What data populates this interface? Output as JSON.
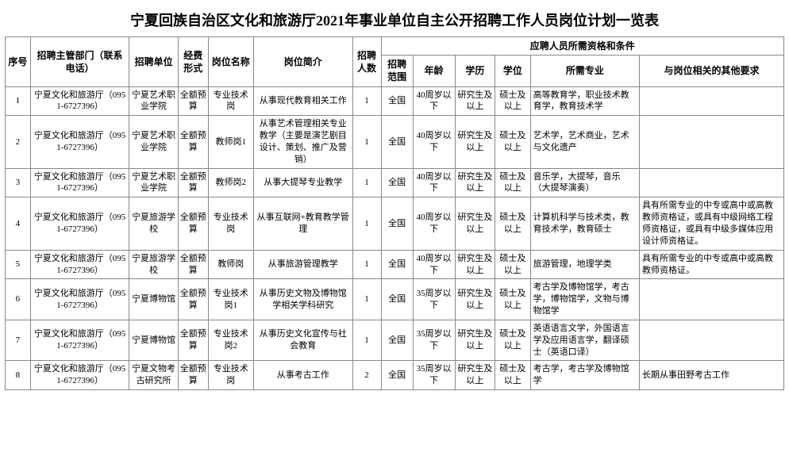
{
  "title": "宁夏回族自治区文化和旅游厅2021年事业单位自主公开招聘工作人员岗位计划一览表",
  "title_fontsize": 18,
  "header_fontsize": 12,
  "body_fontsize": 11,
  "columns": {
    "seq": "序号",
    "dept": "招聘主管部门（联系电话）",
    "unit": "招聘单位",
    "fund": "经费形式",
    "postname": "岗位名称",
    "postdesc": "岗位简介",
    "count": "招聘人数",
    "quals_group": "应聘人员所需资格和条件",
    "scope": "招聘范围",
    "age": "年龄",
    "edu": "学历",
    "degree": "学位",
    "major": "所需专业",
    "other": "与岗位相关的其他要求"
  },
  "col_widths": {
    "seq": 30,
    "dept": 118,
    "unit": 58,
    "fund": 36,
    "postname": 54,
    "postdesc": 118,
    "count": 34,
    "scope": 38,
    "age": 50,
    "edu": 48,
    "degree": 42,
    "major": 130,
    "other": 172
  },
  "rows": [
    {
      "seq": "1",
      "dept": "宁夏文化和旅游厅（0951-6727396）",
      "unit": "宁夏艺术职业学院",
      "fund": "全额预算",
      "postname": "专业技术岗",
      "postdesc": "从事现代教育相关工作",
      "count": "1",
      "scope": "全国",
      "age": "40周岁以下",
      "edu": "研究生及以上",
      "degree": "硕士及以上",
      "major": "高等教育学，职业技术教育学，教育技术学",
      "other": ""
    },
    {
      "seq": "2",
      "dept": "宁夏文化和旅游厅（0951-6727396）",
      "unit": "宁夏艺术职业学院",
      "fund": "全额预算",
      "postname": "教师岗1",
      "postdesc": "从事艺术管理相关专业教学（主要是演艺剧目设计、策划、推广及营销）",
      "count": "1",
      "scope": "全国",
      "age": "40周岁以下",
      "edu": "研究生及以上",
      "degree": "硕士及以上",
      "major": "艺术学，艺术商业，艺术与文化遗产",
      "other": ""
    },
    {
      "seq": "3",
      "dept": "宁夏文化和旅游厅（0951-6727396）",
      "unit": "宁夏艺术职业学院",
      "fund": "全额预算",
      "postname": "教师岗2",
      "postdesc": "从事大提琴专业教学",
      "count": "1",
      "scope": "全国",
      "age": "40周岁以下",
      "edu": "研究生及以上",
      "degree": "硕士及以上",
      "major": "音乐学，大提琴，音乐（大提琴演奏）",
      "other": ""
    },
    {
      "seq": "4",
      "dept": "宁夏文化和旅游厅（0951-6727396）",
      "unit": "宁夏旅游学校",
      "fund": "全额预算",
      "postname": "专业技术岗",
      "postdesc": "从事互联网+教育教学管理",
      "count": "1",
      "scope": "全国",
      "age": "40周岁以下",
      "edu": "研究生及以上",
      "degree": "硕士及以上",
      "major": "计算机科学与技术类，教育技术学，教育硕士",
      "other": "具有所需专业的中专或高中或高教教师资格证，或具有中级网络工程师资格证，或具有中级多媒体应用设计师资格证。"
    },
    {
      "seq": "5",
      "dept": "宁夏文化和旅游厅（0951-6727396）",
      "unit": "宁夏旅游学校",
      "fund": "全额预算",
      "postname": "教师岗",
      "postdesc": "从事旅游管理教学",
      "count": "1",
      "scope": "全国",
      "age": "40周岁以下",
      "edu": "研究生及以上",
      "degree": "硕士及以上",
      "major": "旅游管理，地理学类",
      "other": "具有所需专业的中专或高中或高教教师资格证。"
    },
    {
      "seq": "6",
      "dept": "宁夏文化和旅游厅（0951-6727396）",
      "unit": "宁夏博物馆",
      "fund": "全额预算",
      "postname": "专业技术岗1",
      "postdesc": "从事历史文物及博物馆学相关学科研究",
      "count": "1",
      "scope": "全国",
      "age": "35周岁以下",
      "edu": "研究生及以上",
      "degree": "硕士及以上",
      "major": "考古学及博物馆学，考古学，博物馆学，文物与博物馆学",
      "other": ""
    },
    {
      "seq": "7",
      "dept": "宁夏文化和旅游厅（0951-6727396）",
      "unit": "宁夏博物馆",
      "fund": "全额预算",
      "postname": "专业技术岗2",
      "postdesc": "从事历史文化宣传与社会教育",
      "count": "1",
      "scope": "全国",
      "age": "35周岁以下",
      "edu": "研究生及以上",
      "degree": "硕士及以上",
      "major": "英语语言文学，外国语言学及应用语言学，翻译硕士（英语口译）",
      "other": ""
    },
    {
      "seq": "8",
      "dept": "宁夏文化和旅游厅（0951-6727396）",
      "unit": "宁夏文物考古研究所",
      "fund": "全额预算",
      "postname": "专业技术岗",
      "postdesc": "从事考古工作",
      "count": "2",
      "scope": "全国",
      "age": "35周岁以下",
      "edu": "研究生及以上",
      "degree": "硕士及以上",
      "major": "考古学，考古学及博物馆学",
      "other": "长期从事田野考古工作"
    }
  ]
}
